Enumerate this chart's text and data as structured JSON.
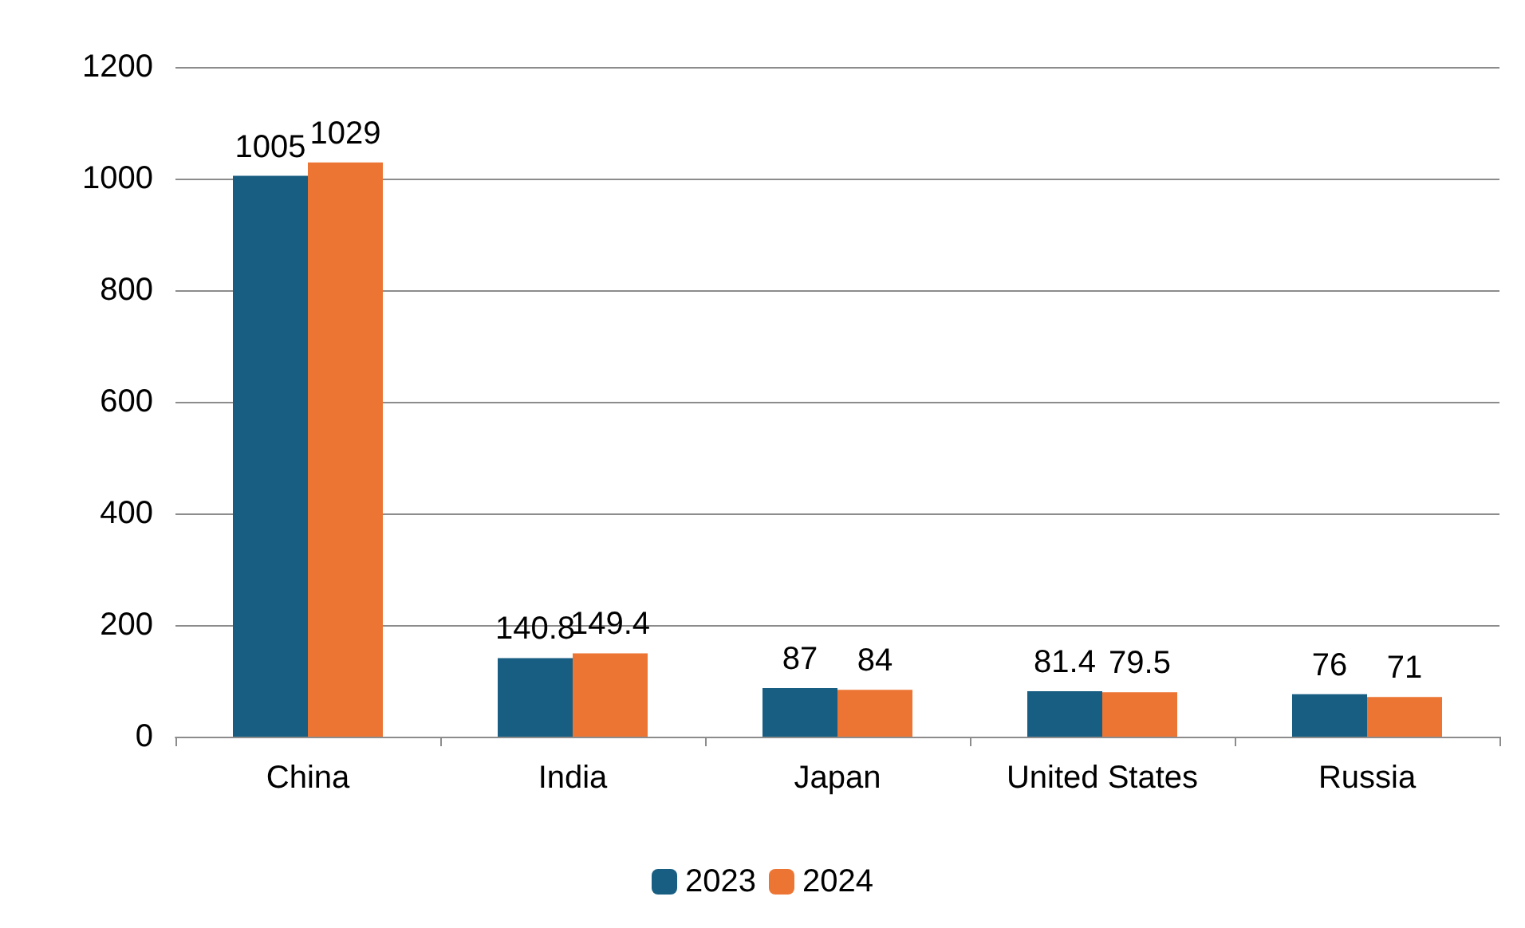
{
  "chart_data": {
    "type": "bar",
    "categories": [
      "China",
      "India",
      "Japan",
      "United States",
      "Russia"
    ],
    "series": [
      {
        "name": "2023",
        "color": "#175e82",
        "values": [
          1005,
          140.8,
          87,
          81.4,
          76
        ]
      },
      {
        "name": "2024",
        "color": "#ed7533",
        "values": [
          1029,
          149.4,
          84,
          79.5,
          71
        ]
      }
    ],
    "ylim": [
      0,
      1200
    ],
    "yticks": [
      0,
      200,
      400,
      600,
      800,
      1000,
      1200
    ],
    "grid": "y",
    "legend": "bottom",
    "data_labels": true
  }
}
